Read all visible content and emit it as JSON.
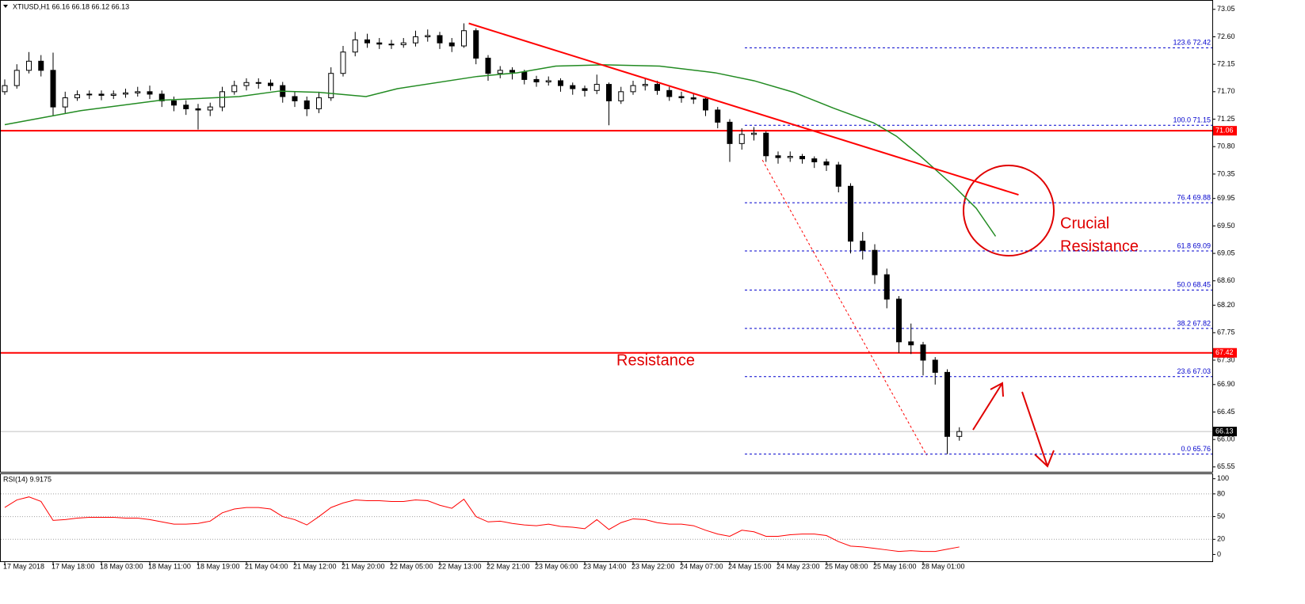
{
  "chart_data": {
    "type": "candlestick",
    "title": "XTIUSD,H1  66.16 66.18 66.12 66.13",
    "x_labels": [
      "17 May 2018",
      "17 May 18:00",
      "18 May 03:00",
      "18 May 11:00",
      "18 May 19:00",
      "21 May 04:00",
      "21 May 12:00",
      "21 May 20:00",
      "22 May 05:00",
      "22 May 13:00",
      "22 May 21:00",
      "23 May 06:00",
      "23 May 14:00",
      "23 May 22:00",
      "24 May 07:00",
      "24 May 15:00",
      "24 May 23:00",
      "25 May 08:00",
      "25 May 16:00",
      "28 May 01:00"
    ],
    "candles": {
      "open": [
        71.7,
        71.8,
        72.05,
        72.2,
        72.05,
        71.45,
        71.6,
        71.65,
        71.66,
        71.64,
        71.66,
        71.68,
        71.7,
        71.66,
        71.55,
        71.48,
        71.42,
        71.4,
        71.45,
        71.7,
        71.8,
        71.85,
        71.84,
        71.8,
        71.62,
        71.55,
        71.42,
        71.6,
        72.0,
        72.35,
        72.55,
        72.5,
        72.48,
        72.47,
        72.5,
        72.6,
        72.62,
        72.5,
        72.45,
        72.7,
        72.25,
        72.0,
        72.05,
        72.02,
        71.9,
        71.86,
        71.88,
        71.8,
        71.75,
        71.72,
        71.82,
        71.55,
        71.7,
        71.8,
        71.82,
        71.72,
        71.62,
        71.6,
        71.58,
        71.4,
        71.2,
        70.85,
        71.0,
        71.02,
        70.65,
        70.62,
        70.64,
        70.6,
        70.55,
        70.5,
        70.15,
        69.25,
        69.1,
        68.7,
        68.3,
        67.6,
        67.55,
        67.3,
        67.1,
        66.05
      ],
      "high": [
        71.9,
        72.15,
        72.35,
        72.3,
        72.34,
        71.7,
        71.72,
        71.72,
        71.72,
        71.72,
        71.75,
        71.78,
        71.8,
        71.72,
        71.62,
        71.56,
        71.5,
        71.52,
        71.78,
        71.88,
        71.92,
        71.92,
        71.9,
        71.86,
        71.7,
        71.62,
        71.7,
        72.1,
        72.45,
        72.68,
        72.65,
        72.58,
        72.55,
        72.58,
        72.7,
        72.72,
        72.68,
        72.58,
        72.82,
        72.74,
        72.3,
        72.12,
        72.1,
        72.06,
        71.96,
        71.95,
        71.92,
        71.85,
        71.8,
        71.98,
        71.85,
        71.78,
        71.88,
        71.92,
        71.88,
        71.78,
        71.7,
        71.66,
        71.62,
        71.45,
        71.25,
        71.1,
        71.12,
        71.05,
        70.72,
        70.72,
        70.68,
        70.64,
        70.6,
        70.55,
        70.2,
        69.4,
        69.2,
        68.8,
        68.35,
        67.9,
        67.6,
        67.35,
        67.15,
        66.2
      ],
      "low": [
        71.65,
        71.75,
        72.0,
        71.95,
        71.3,
        71.35,
        71.55,
        71.58,
        71.56,
        71.58,
        71.6,
        71.62,
        71.58,
        71.45,
        71.38,
        71.32,
        71.08,
        71.3,
        71.38,
        71.65,
        71.72,
        71.75,
        71.72,
        71.52,
        71.45,
        71.3,
        71.35,
        71.55,
        71.95,
        72.28,
        72.42,
        72.4,
        72.4,
        72.42,
        72.44,
        72.52,
        72.4,
        72.35,
        72.42,
        72.15,
        71.88,
        71.92,
        71.9,
        71.82,
        71.78,
        71.8,
        71.7,
        71.65,
        71.62,
        71.66,
        71.15,
        71.5,
        71.65,
        71.72,
        71.65,
        71.55,
        71.52,
        71.5,
        71.3,
        71.1,
        70.55,
        70.75,
        70.9,
        70.55,
        70.52,
        70.55,
        70.52,
        70.45,
        70.4,
        70.05,
        69.05,
        68.95,
        68.55,
        68.15,
        67.42,
        67.4,
        67.05,
        66.9,
        65.76,
        65.98
      ],
      "close": [
        71.8,
        72.05,
        72.2,
        72.05,
        71.45,
        71.6,
        71.65,
        71.66,
        71.64,
        71.66,
        71.68,
        71.7,
        71.66,
        71.55,
        71.48,
        71.42,
        71.4,
        71.45,
        71.7,
        71.8,
        71.85,
        71.84,
        71.8,
        71.62,
        71.55,
        71.42,
        71.6,
        72.0,
        72.35,
        72.55,
        72.5,
        72.48,
        72.47,
        72.5,
        72.6,
        72.62,
        72.5,
        72.45,
        72.7,
        72.25,
        72.0,
        72.05,
        72.02,
        71.9,
        71.86,
        71.88,
        71.8,
        71.75,
        71.72,
        71.82,
        71.55,
        71.7,
        71.8,
        71.82,
        71.72,
        71.62,
        71.6,
        71.58,
        71.4,
        71.2,
        70.85,
        71.0,
        71.02,
        70.65,
        70.62,
        70.64,
        70.6,
        70.55,
        70.5,
        70.15,
        69.25,
        69.1,
        68.7,
        68.3,
        67.6,
        67.55,
        67.3,
        67.1,
        66.05,
        66.13
      ]
    },
    "ylim": [
      65.47,
      73.19
    ],
    "yticks": [
      73.05,
      {
        "value": 72.6,
        "label": "72.60"
      },
      72.15,
      {
        "value": 71.7,
        "label": "71.70"
      },
      71.25,
      {
        "value": 70.8,
        "label": "70.80"
      },
      70.35,
      69.95,
      {
        "value": 69.5,
        "label": "69.50"
      },
      69.05,
      {
        "value": 68.6,
        "label": "68.60"
      },
      {
        "value": 68.2,
        "label": "68.20"
      },
      67.75,
      {
        "value": 67.3,
        "label": "67.30"
      },
      {
        "value": 66.9,
        "label": "66.90"
      },
      66.45,
      {
        "value": 66.0,
        "label": "66.00"
      },
      65.55
    ],
    "ma": {
      "color": "#228b22",
      "x": [
        0,
        6.3,
        12.9,
        19.4,
        22.7,
        26,
        29.9,
        32.5,
        39.1,
        42.4,
        45.6,
        49.6,
        54.2,
        58.8,
        62,
        65.3,
        68.6,
        71.9,
        73.8,
        75.8,
        78.4,
        80.4,
        82
      ],
      "values": [
        71.16,
        71.39,
        71.56,
        71.62,
        71.71,
        71.69,
        71.62,
        71.75,
        71.95,
        72.01,
        72.12,
        72.14,
        72.12,
        72.01,
        71.88,
        71.69,
        71.43,
        71.19,
        70.97,
        70.64,
        70.18,
        69.79,
        69.33
      ]
    },
    "trendline": {
      "color": "#ff0000",
      "x": [
        38.4,
        83.9
      ],
      "values": [
        72.82,
        70.01
      ]
    },
    "projection": {
      "color": "#ff0000",
      "x": [
        62.7,
        76.3
      ],
      "values": [
        70.58,
        65.74
      ]
    },
    "levels": [
      {
        "value": 71.06,
        "color": "#ff0000",
        "box": "#ff0000"
      },
      {
        "value": 67.42,
        "color": "#ff0000",
        "box": "#ff0000"
      },
      {
        "value": 66.13,
        "color": "#c0c0c0",
        "box": "#000000"
      }
    ],
    "fib": {
      "color": "#0000cd",
      "lines": [
        {
          "label": "123.6 72.42",
          "value": 72.42
        },
        {
          "label": "100.0 71.15",
          "value": 71.15
        },
        {
          "label": "76.4 69.88",
          "value": 69.88
        },
        {
          "label": "61.8 69.09",
          "value": 69.09
        },
        {
          "label": "50.0 68.45",
          "value": 68.45
        },
        {
          "label": "38.2 67.82",
          "value": 67.82
        },
        {
          "label": "23.6 67.03",
          "value": 67.03
        },
        {
          "label": "0.0 65.76",
          "value": 65.76
        }
      ]
    },
    "annotations": {
      "resistance": "Resistance",
      "crucial": [
        "Crucial",
        "Resistance"
      ]
    },
    "rsi": {
      "title": "RSI(14) 9.9175",
      "color": "#ff0000",
      "ylim": [
        -10,
        106
      ],
      "yticks": [
        100,
        80,
        50,
        20,
        0
      ],
      "levels": [
        80,
        50,
        20
      ],
      "values": [
        62,
        72,
        76,
        70,
        45,
        46,
        48,
        49,
        49,
        49,
        48,
        48,
        46,
        43,
        40,
        40,
        41,
        44,
        55,
        60,
        62,
        62,
        60,
        50,
        46,
        39,
        50,
        62,
        68,
        72,
        71,
        71,
        70,
        70,
        72,
        71,
        65,
        61,
        73,
        50,
        43,
        44,
        41,
        39,
        38,
        40,
        37,
        36,
        34,
        46,
        33,
        42,
        47,
        46,
        42,
        40,
        40,
        38,
        32,
        27,
        24,
        32,
        30,
        24,
        24,
        26,
        27,
        27,
        25,
        17,
        11,
        10,
        8,
        6,
        4,
        5,
        4,
        4,
        7,
        9.9175
      ]
    }
  }
}
